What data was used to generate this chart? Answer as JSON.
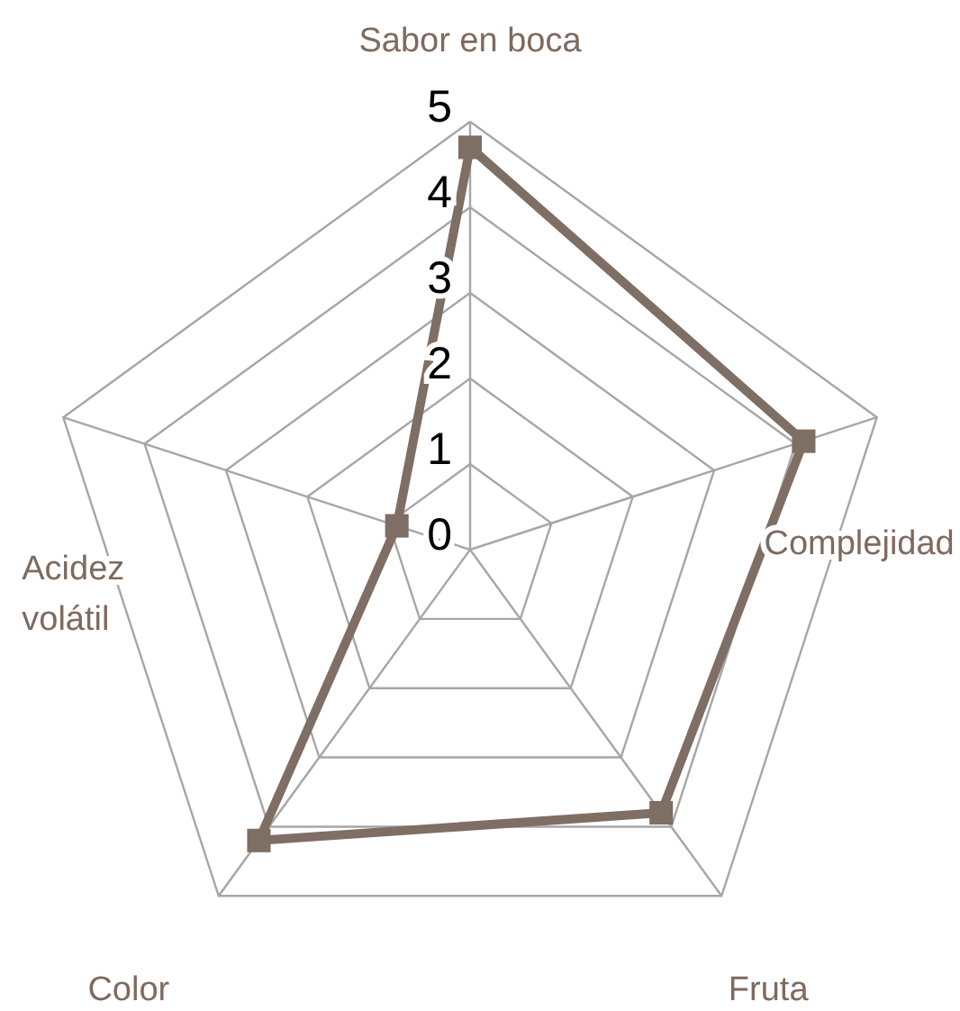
{
  "chart_data": {
    "type": "radar",
    "categories": [
      "Sabor en boca",
      "Complejidad",
      "Fruta",
      "Color",
      "Acidez volátil"
    ],
    "series": [
      {
        "color": "#7f6e64",
        "values": [
          4.7,
          4.1,
          3.8,
          4.2,
          0.9
        ]
      }
    ],
    "ylim": [
      0,
      5
    ],
    "yticks": [
      0,
      1,
      2,
      3,
      4,
      5
    ],
    "grid": true,
    "marker": "square",
    "line_style": "solid"
  }
}
